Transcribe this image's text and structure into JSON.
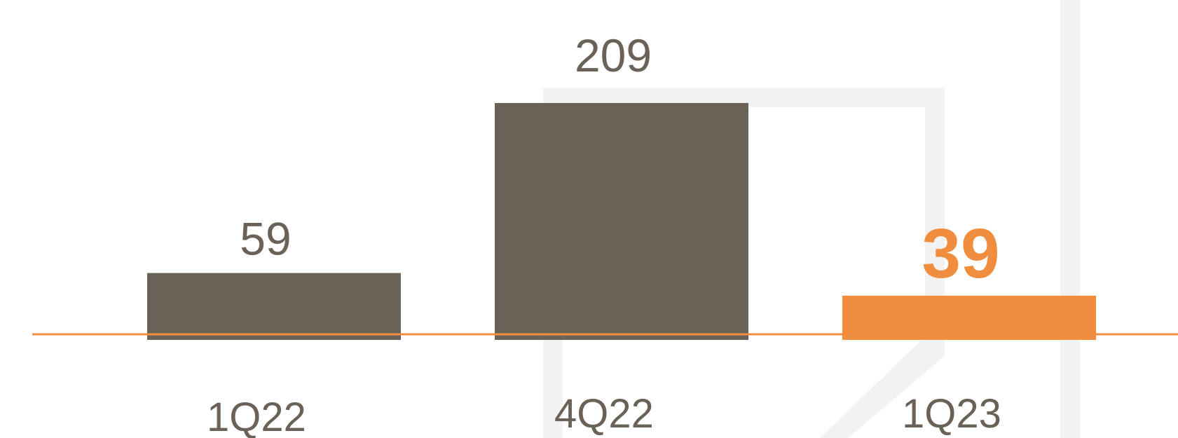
{
  "chart_data": {
    "type": "bar",
    "categories": [
      "1Q22",
      "4Q22",
      "1Q23"
    ],
    "values": [
      59,
      209,
      39
    ],
    "highlight_index": 2,
    "ylim": [
      0,
      209
    ],
    "grid": false,
    "legend": "none",
    "colors": {
      "bar": "#6a6157",
      "highlight": "#f08d3e",
      "baseline": "#f08d3e",
      "watermark": "#f2f2f2"
    }
  }
}
